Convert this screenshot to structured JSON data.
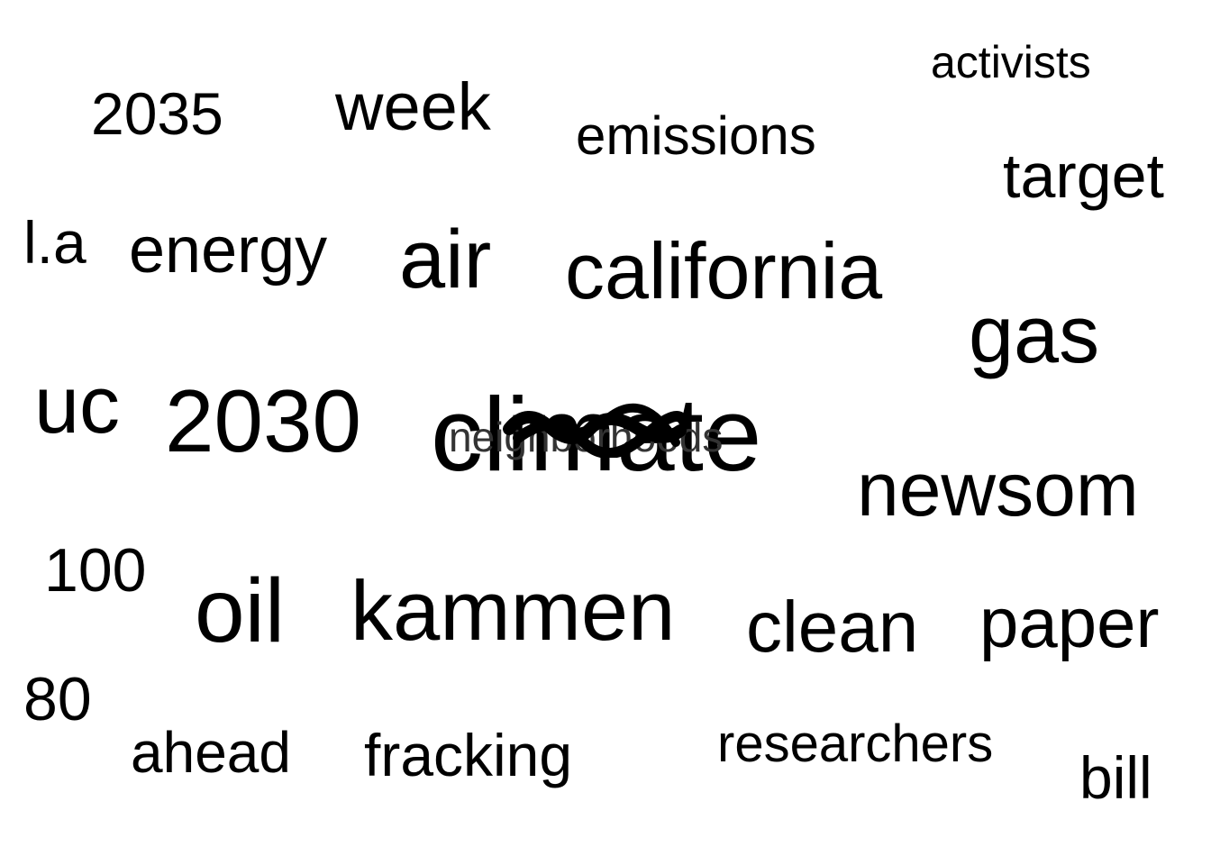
{
  "cloud": {
    "words": {
      "activists": "activists",
      "2035": "2035",
      "week": "week",
      "emissions": "emissions",
      "target": "target",
      "la": "l.a",
      "energy": "energy",
      "air": "air",
      "california": "california",
      "gas": "gas",
      "uc": "uc",
      "2030": "2030",
      "climate": "climate",
      "newsom": "newsom",
      "100": "100",
      "oil": "oil",
      "kammen": "kammen",
      "clean": "clean",
      "paper": "paper",
      "80": "80",
      "ahead": "ahead",
      "fracking": "fracking",
      "researchers": "researchers",
      "bill": "bill",
      "neighborhoods": "neighborhoods"
    },
    "text_color": "#000000",
    "background_color": "#ffffff"
  }
}
